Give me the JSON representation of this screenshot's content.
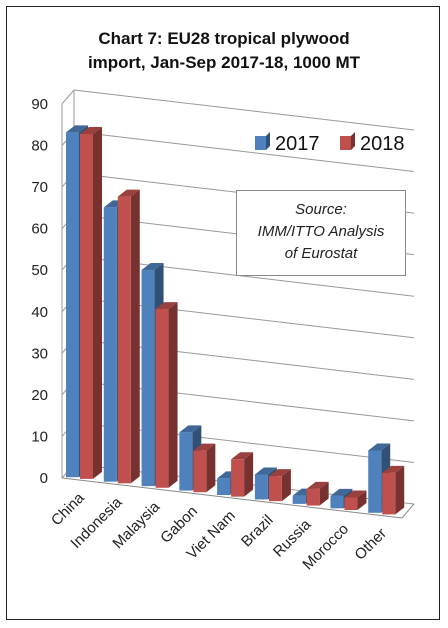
{
  "chart_data": {
    "type": "bar",
    "title_line1": "Chart 7: EU28 tropical plywood",
    "title_line2": "import, Jan-Sep 2017-18, 1000 MT",
    "categories": [
      "China",
      "Indonesia",
      "Malaysia",
      "Gabon",
      "Viet Nam",
      "Brazil",
      "Russia",
      "Morocco",
      "Other"
    ],
    "series": [
      {
        "name": "2017",
        "color": "#4f81bd",
        "values": [
          83,
          66,
          52,
          14,
          4,
          6,
          2,
          3,
          15
        ]
      },
      {
        "name": "2018",
        "color": "#c0504d",
        "values": [
          83,
          69,
          43,
          10,
          9,
          6,
          4,
          3,
          10
        ]
      }
    ],
    "ylim": [
      0,
      90
    ],
    "yticks": [
      "0",
      "10",
      "20",
      "30",
      "40",
      "50",
      "60",
      "70",
      "80",
      "90"
    ],
    "grid": true,
    "legend": "top-right",
    "annotation": {
      "line1": "Source:",
      "line2": "IMM/ITTO Analysis",
      "line3": "of Eurostat"
    }
  }
}
